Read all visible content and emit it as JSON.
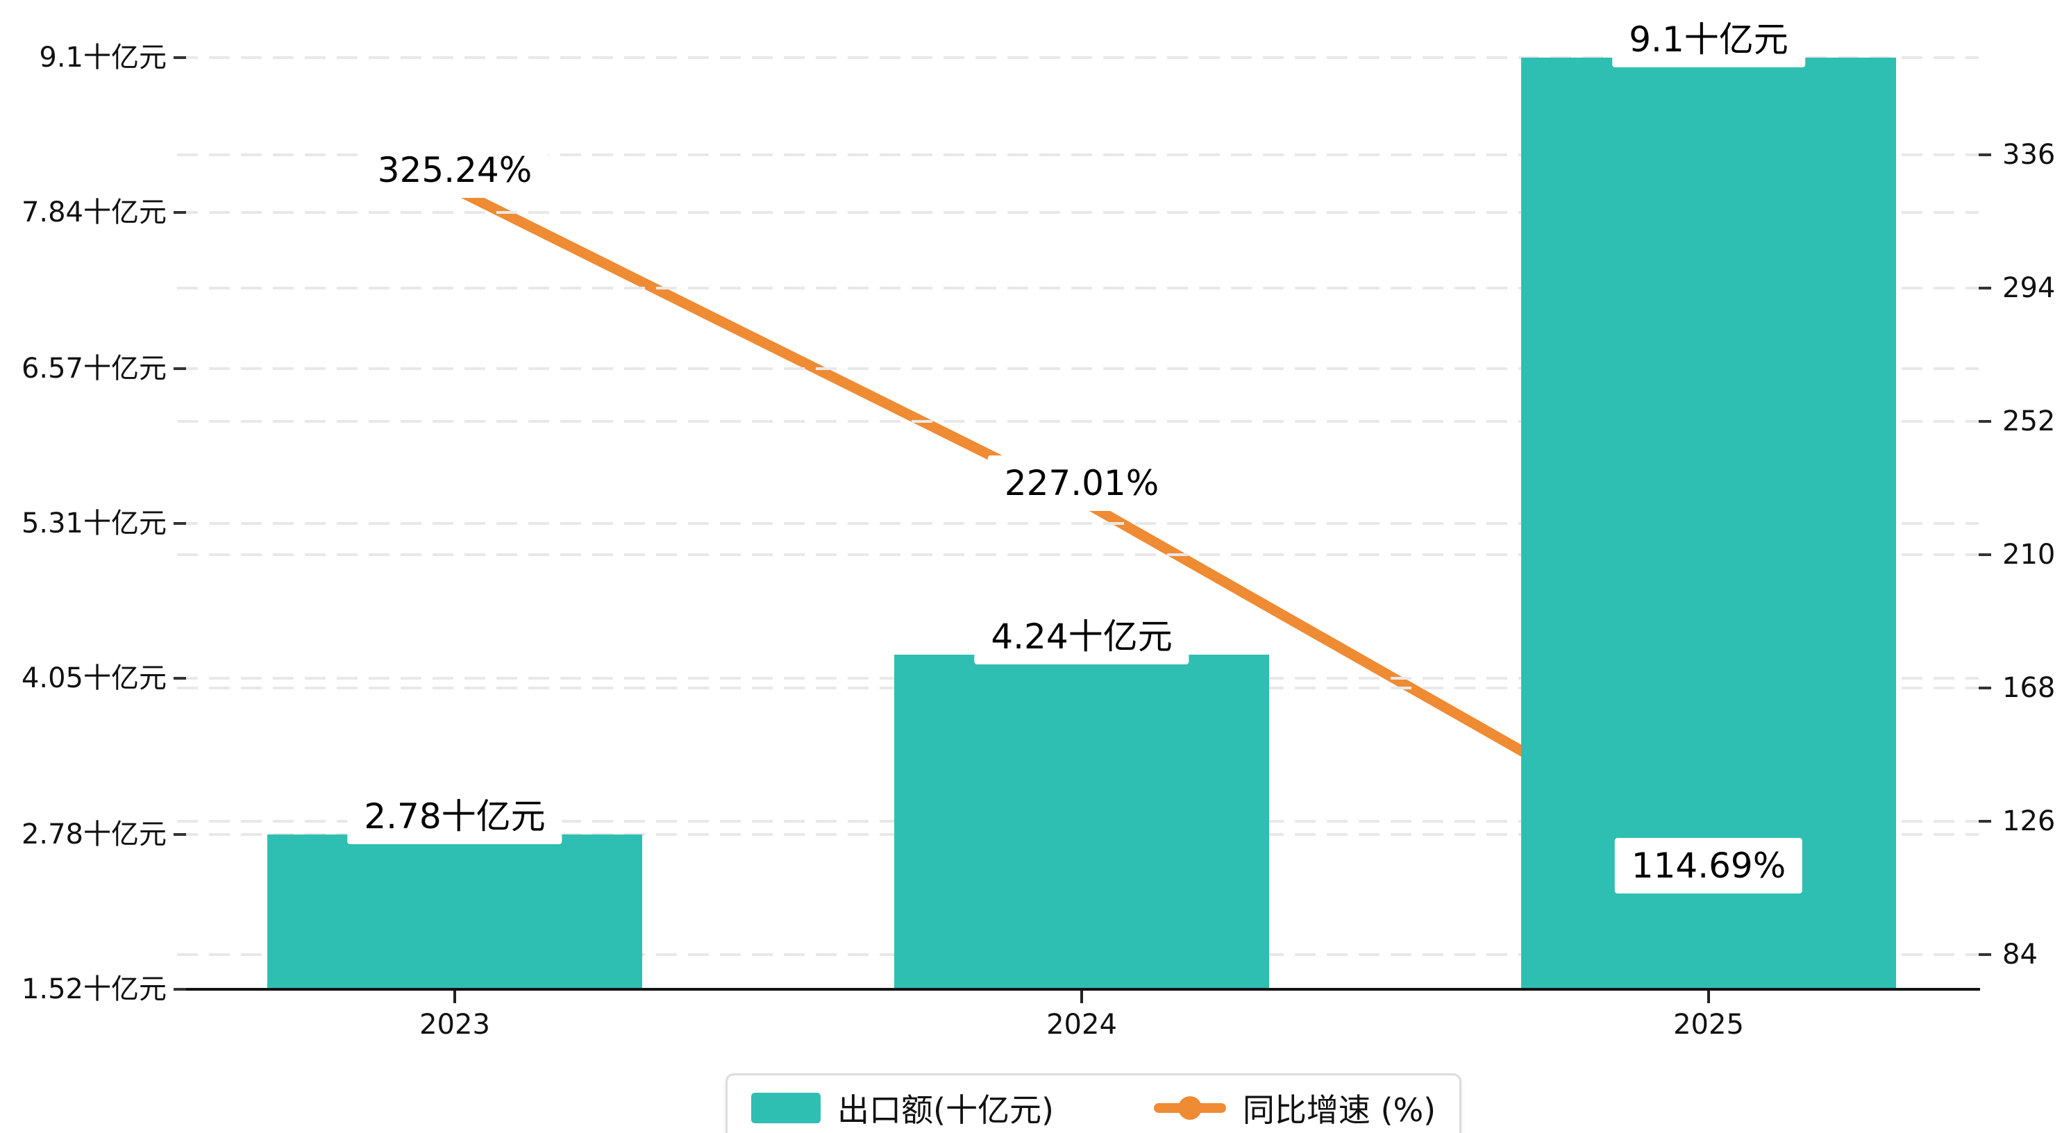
{
  "chart_data": {
    "type": "bar+line dual-axis",
    "categories": [
      "2023",
      "2024",
      "2025"
    ],
    "series": [
      {
        "name": "出口额(十亿元)",
        "type": "bar",
        "axis": "left",
        "unit": "十亿元",
        "values": [
          2.78,
          4.24,
          9.1
        ],
        "point_labels": [
          "2.78十亿元",
          "4.24十亿元",
          "9.1十亿元"
        ],
        "color": "#2fbfb2"
      },
      {
        "name": "同比增速 (%)",
        "type": "line",
        "axis": "right",
        "unit": "%",
        "values": [
          325.24,
          227.01,
          114.69
        ],
        "point_labels": [
          "325.24%",
          "227.01%",
          "114.69%"
        ],
        "color": "#ef8b33"
      }
    ],
    "left_axis": {
      "tick_labels": [
        "9.1十亿元",
        "7.84十亿元",
        "6.57十亿元",
        "5.31十亿元",
        "4.05十亿元",
        "2.78十亿元",
        "1.52十亿元"
      ],
      "tick_values": [
        9.1,
        7.84,
        6.57,
        5.31,
        4.05,
        2.78,
        1.52
      ],
      "min": 1.52,
      "max": 9.1
    },
    "right_axis": {
      "tick_labels": [
        "336",
        "294",
        "252",
        "210",
        "168",
        "126",
        "84"
      ],
      "tick_values": [
        336,
        294,
        252,
        210,
        168,
        126,
        84
      ]
    },
    "grid": "horizontal dashed gridlines for both axes",
    "legend_position": "bottom-center"
  },
  "legend": {
    "items": [
      {
        "label": "出口额(十亿元)",
        "marker": "bar-swatch",
        "color": "#2fbfb2"
      },
      {
        "label": "同比增速 (%)",
        "marker": "line-dot",
        "color": "#ef8b33"
      }
    ]
  },
  "colors": {
    "bar": "#2fbfb2",
    "line": "#ef8b33",
    "gridline": "#e8e8e8",
    "axis": "#141414",
    "text": "#111111"
  }
}
